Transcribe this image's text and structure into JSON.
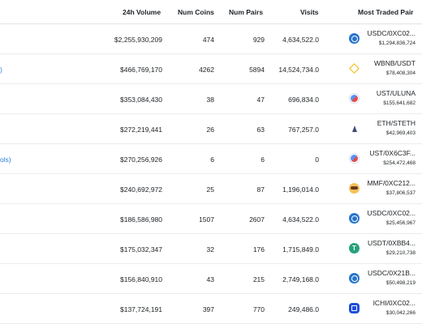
{
  "table": {
    "headers": {
      "volume": "24h Volume",
      "coins": "Num Coins",
      "pairs": "Num Pairs",
      "visits": "Visits",
      "pair": "Most Traded Pair"
    },
    "rows": [
      {
        "partial": "",
        "volume": "$2,255,930,209",
        "coins": "474",
        "pairs": "929",
        "visits": "4,634,522.0",
        "pair_name": "USDC/0XC02...",
        "pair_volume": "$1,294,836,724",
        "icon": "usdc-icon"
      },
      {
        "partial": ")",
        "volume": "$466,769,170",
        "coins": "4262",
        "pairs": "5894",
        "visits": "14,524,734.0",
        "pair_name": "WBNB/USDT",
        "pair_volume": "$78,408,304",
        "icon": "bnb-icon"
      },
      {
        "partial": "",
        "volume": "$353,084,430",
        "coins": "38",
        "pairs": "47",
        "visits": "696,834.0",
        "pair_name": "UST/ULUNA",
        "pair_volume": "$155,641,682",
        "icon": "ust-icon"
      },
      {
        "partial": "",
        "volume": "$272,219,441",
        "coins": "26",
        "pairs": "63",
        "visits": "767,257.0",
        "pair_name": "ETH/STETH",
        "pair_volume": "$42,969,403",
        "icon": "eth-icon"
      },
      {
        "partial": "ols)",
        "volume": "$270,256,926",
        "coins": "6",
        "pairs": "6",
        "visits": "0",
        "pair_name": "UST/0X6C3F...",
        "pair_volume": "$254,472,468",
        "icon": "ust-icon"
      },
      {
        "partial": "",
        "volume": "$240,692,972",
        "coins": "25",
        "pairs": "87",
        "visits": "1,196,014.0",
        "pair_name": "MMF/0XC212...",
        "pair_volume": "$37,806,537",
        "icon": "mmf-icon"
      },
      {
        "partial": "",
        "volume": "$186,586,980",
        "coins": "1507",
        "pairs": "2607",
        "visits": "4,634,522.0",
        "pair_name": "USDC/0XC02...",
        "pair_volume": "$25,456,967",
        "icon": "usdc-icon"
      },
      {
        "partial": "",
        "volume": "$175,032,347",
        "coins": "32",
        "pairs": "176",
        "visits": "1,715,849.0",
        "pair_name": "USDT/0XBB4...",
        "pair_volume": "$29,210,738",
        "icon": "usdt-icon"
      },
      {
        "partial": "",
        "volume": "$156,840,910",
        "coins": "43",
        "pairs": "215",
        "visits": "2,749,168.0",
        "pair_name": "USDC/0X21B...",
        "pair_volume": "$50,498,219",
        "icon": "usdc-icon"
      },
      {
        "partial": "",
        "volume": "$137,724,191",
        "coins": "397",
        "pairs": "770",
        "visits": "249,486.0",
        "pair_name": "ICHI/0XC02...",
        "pair_volume": "$30,042,266",
        "icon": "ichi-icon"
      }
    ]
  }
}
